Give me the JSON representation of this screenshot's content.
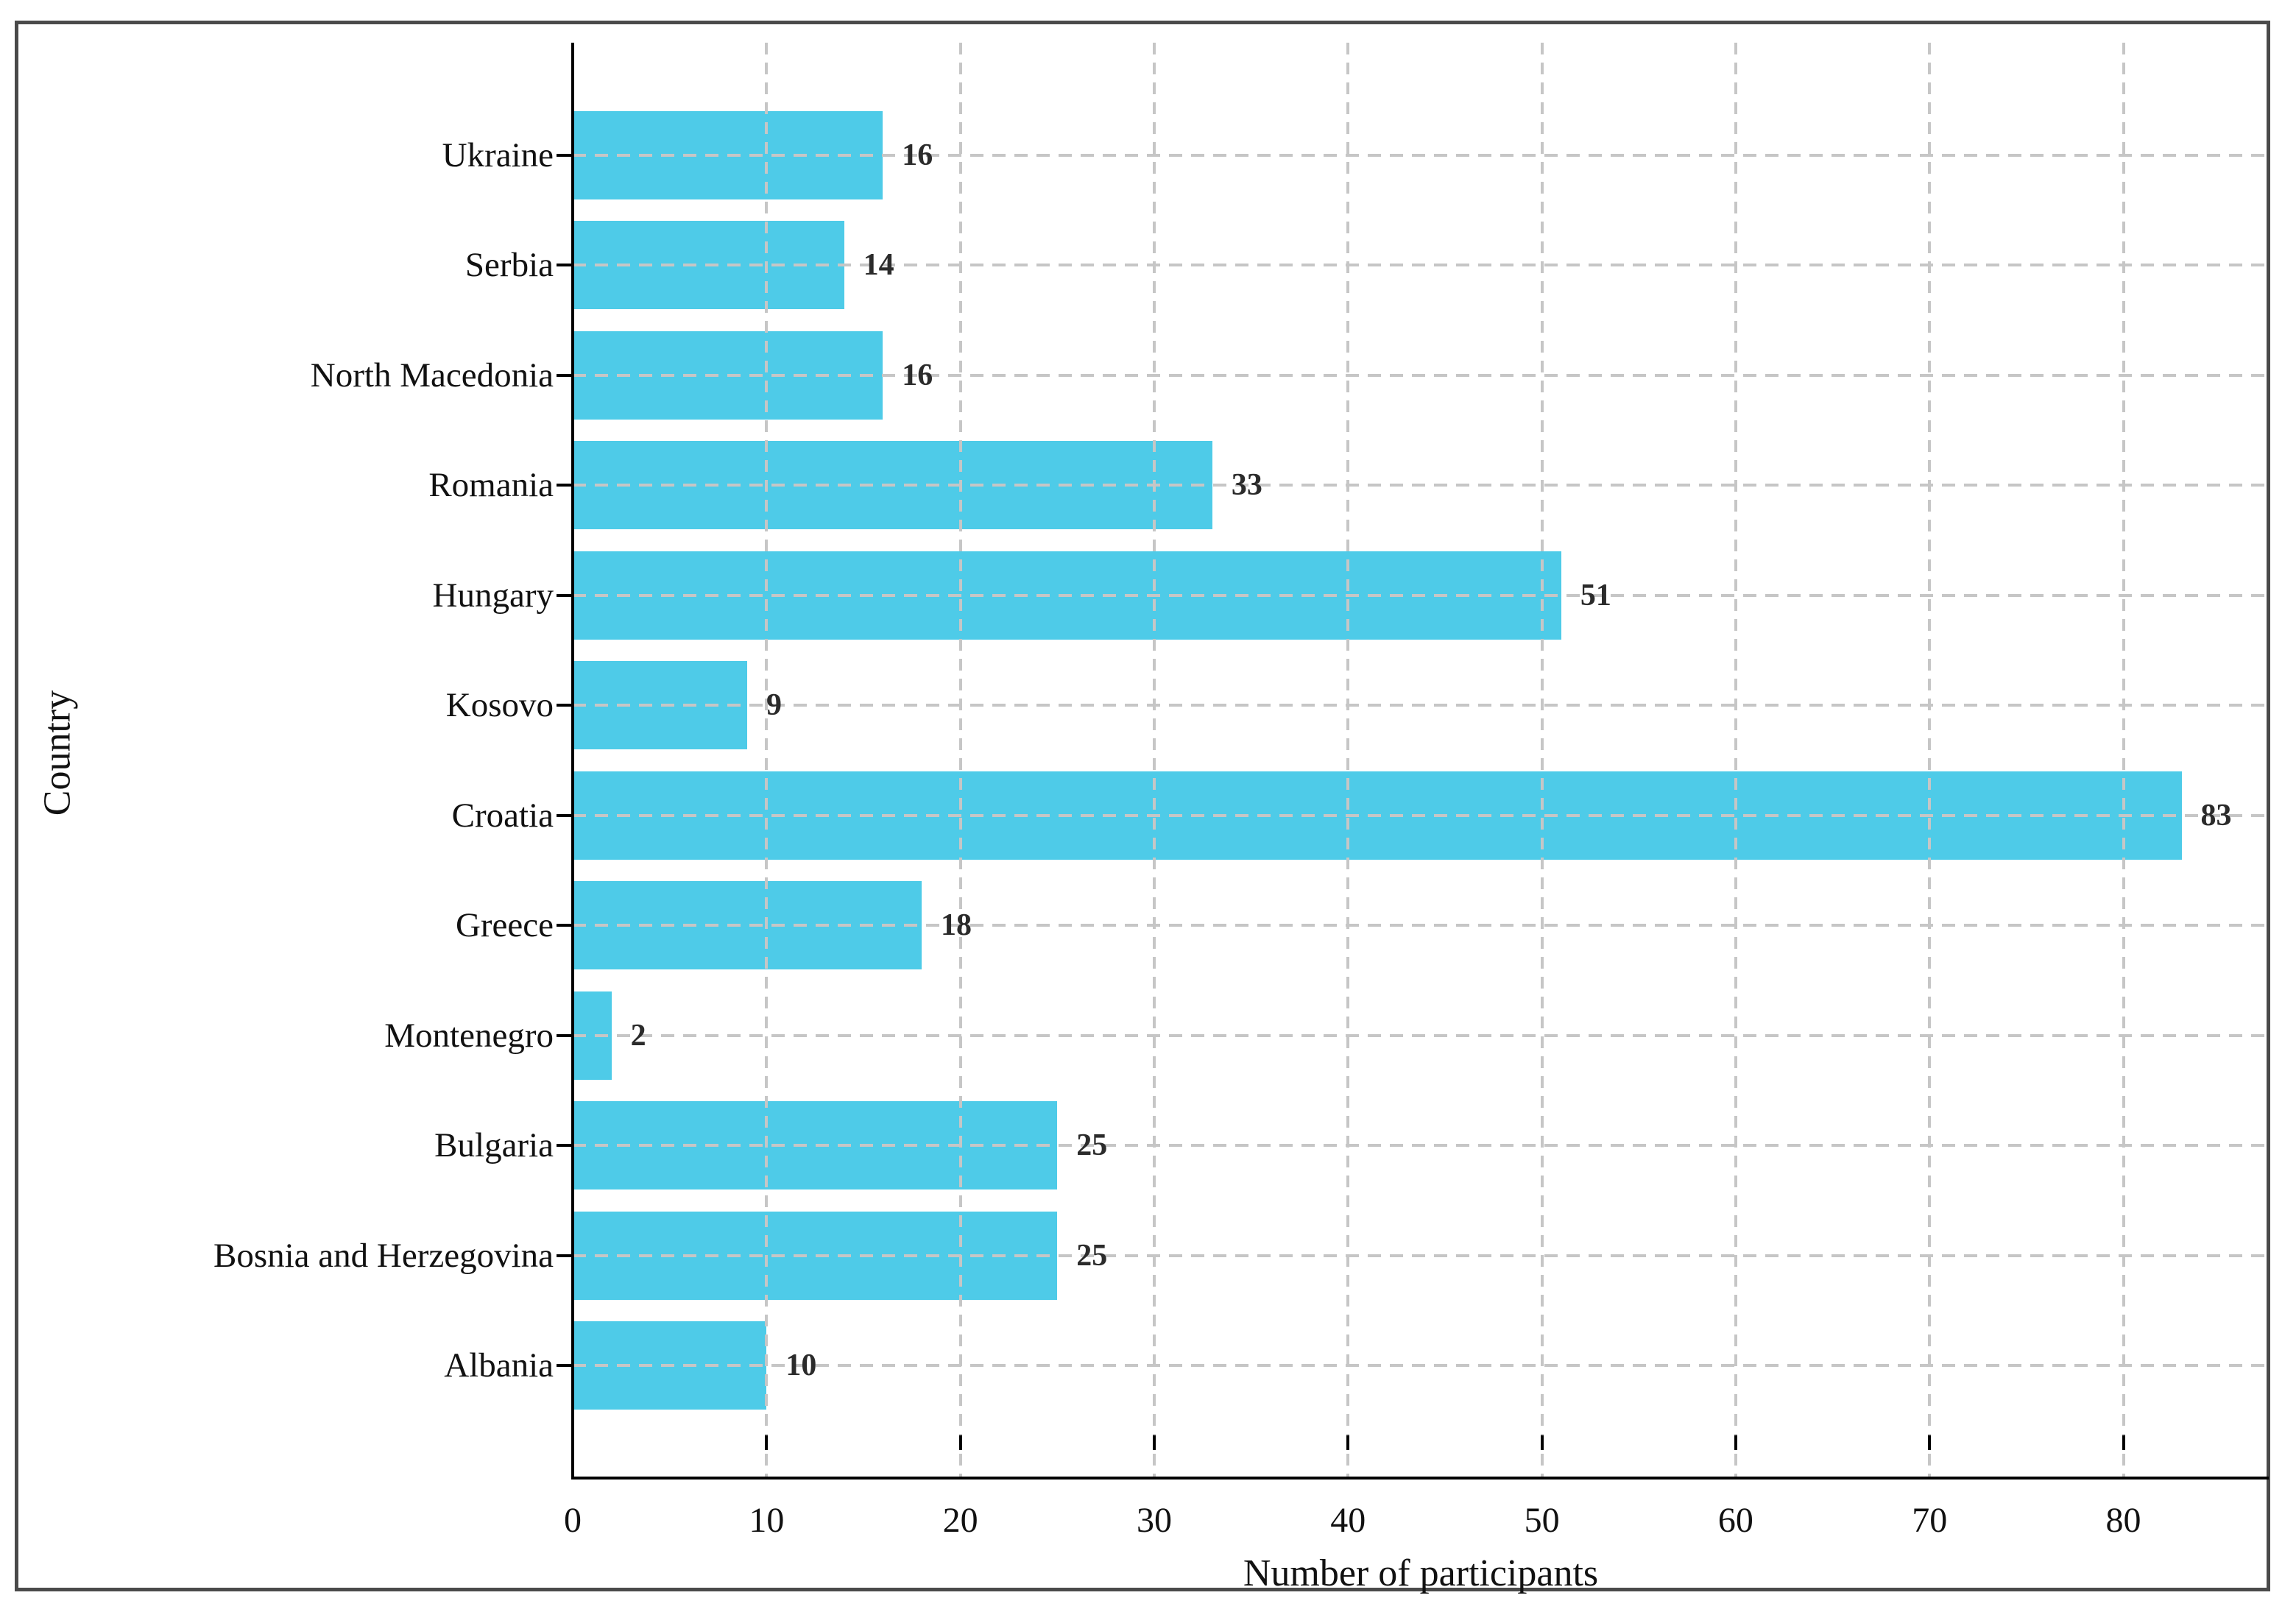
{
  "chart_data": {
    "type": "bar",
    "orientation": "horizontal",
    "title": "",
    "xlabel": "Number of participants",
    "ylabel": "Country",
    "categories": [
      "Ukraine",
      "Serbia",
      "North Macedonia",
      "Romania",
      "Hungary",
      "Kosovo",
      "Croatia",
      "Greece",
      "Montenegro",
      "Bulgaria",
      "Bosnia and Herzegovina",
      "Albania"
    ],
    "values": [
      16,
      14,
      16,
      33,
      51,
      9,
      83,
      18,
      2,
      25,
      25,
      10
    ],
    "value_labels": [
      "16",
      "14",
      "16",
      "33",
      "51",
      "9",
      "83",
      "18",
      "2",
      "25",
      "25",
      "10"
    ],
    "xticks": [
      0,
      10,
      20,
      30,
      40,
      50,
      60,
      70,
      80
    ],
    "xtick_labels": [
      "0",
      "10",
      "20",
      "30",
      "40",
      "50",
      "60",
      "70",
      "80"
    ],
    "xlim": [
      0,
      87.5
    ],
    "grid": "dashed gridlines on both axes, drawn over bars",
    "legend_position": "none",
    "colors": {
      "bar_fill": "#4ecbe8",
      "value_label": "#2b2b2b",
      "gridline": "#c6c6c6",
      "axis_text": "#111111",
      "spine": "#000000",
      "figure_border": "#4a4a4a",
      "background": "#ffffff"
    }
  }
}
